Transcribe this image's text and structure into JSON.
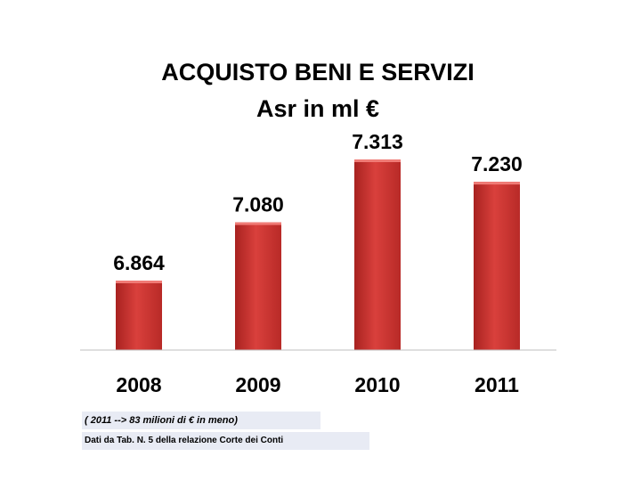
{
  "chart_data": {
    "type": "bar",
    "title": "ACQUISTO BENI E SERVIZI",
    "subtitle": "Asr in ml €",
    "categories": [
      "2008",
      "2009",
      "2010",
      "2011"
    ],
    "values": [
      6864,
      7080,
      7313,
      7230
    ],
    "value_labels": [
      "6.864",
      "7.080",
      "7.313",
      "7.230"
    ],
    "bar_color": "#d9403c",
    "grid": false,
    "legend": "none"
  },
  "notes": {
    "difference": "( 2011 --> 83 milioni di € in meno)",
    "source": "Dati da Tab. N. 5 della relazione Corte dei Conti"
  }
}
